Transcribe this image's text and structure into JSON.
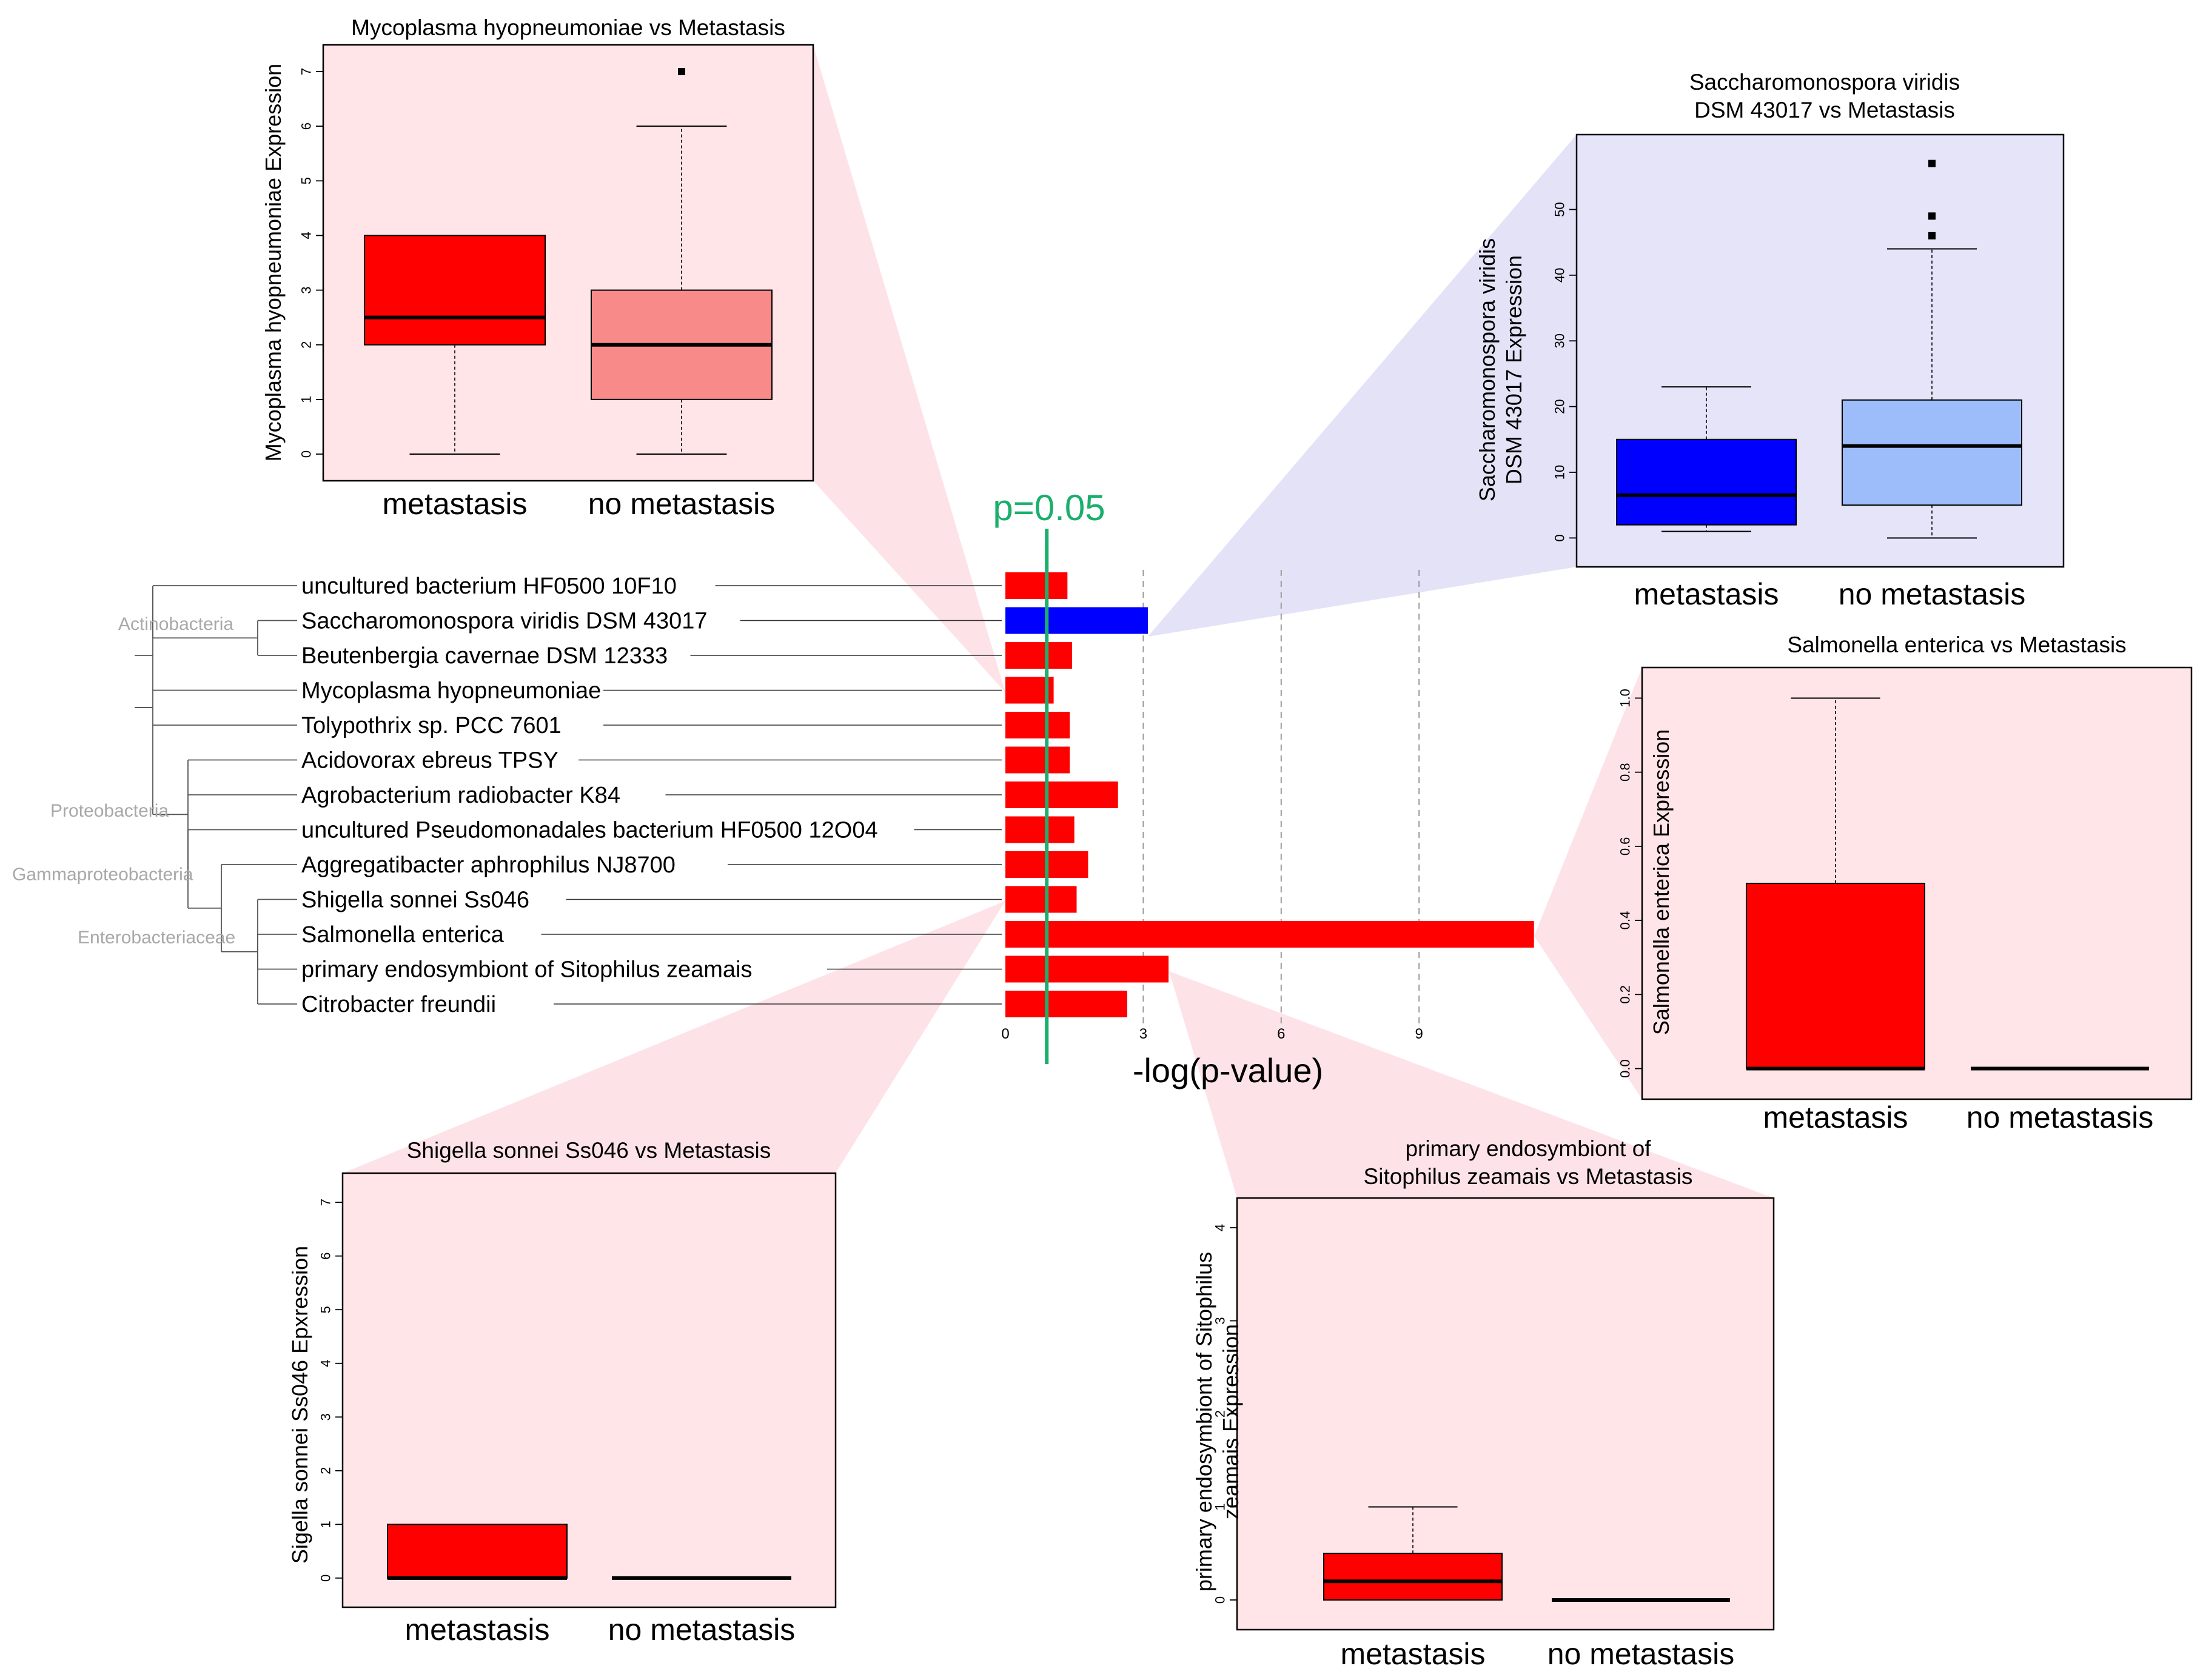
{
  "chart_data": [
    {
      "id": "main",
      "type": "bar",
      "orientation": "horizontal",
      "xlabel": "-log(p-value)",
      "xticks": [
        0,
        3,
        6,
        9
      ],
      "xlim": [
        0,
        12
      ],
      "threshold": {
        "label": "p=0.05",
        "value": 0.9,
        "color": "#1aaf6c"
      },
      "categories": [
        "uncultured bacterium HF0500 10F10",
        "Saccharomonospora viridis DSM 43017",
        "Beutenbergia cavernae DSM 12333",
        "Mycoplasma hyopneumoniae",
        "Tolypothrix sp. PCC 7601",
        "Acidovorax ebreus TPSY",
        "Agrobacterium radiobacter K84",
        "uncultured Pseudomonadales bacterium HF0500 12O04",
        "Aggregatibacter aphrophilus NJ8700",
        "Shigella sonnei Ss046",
        "Salmonella enterica",
        "primary endosymbiont of Sitophilus zeamais",
        "Citrobacter freundii"
      ],
      "values": [
        1.35,
        3.1,
        1.45,
        1.05,
        1.4,
        1.4,
        2.45,
        1.5,
        1.8,
        1.55,
        11.5,
        3.55,
        2.65
      ],
      "colors": [
        "#ff0000",
        "#0000ff",
        "#ff0000",
        "#ff0000",
        "#ff0000",
        "#ff0000",
        "#ff0000",
        "#ff0000",
        "#ff0000",
        "#ff0000",
        "#ff0000",
        "#ff0000",
        "#ff0000"
      ],
      "taxa_labels": [
        "Actinobacteria",
        "Proteobacteria",
        "Gammaproteobacteria",
        "Enterobacteriaceae"
      ]
    },
    {
      "id": "mycoplasma",
      "type": "boxplot",
      "title": [
        "Mycoplasma hyopneumoniae vs Metastasis"
      ],
      "ylabel": [
        "Mycoplasma hyopneumoniae Expression"
      ],
      "ylim": [
        -0.2,
        7.2
      ],
      "yticks": [
        0,
        1,
        2,
        3,
        4,
        5,
        6,
        7
      ],
      "panel_color": "#ffe4e8",
      "groups": [
        {
          "name": "metastasis",
          "min": 0,
          "q1": 2,
          "median": 2.5,
          "q3": 4,
          "max": 4,
          "outliers": [],
          "color": "#ff0000"
        },
        {
          "name": "no metastasis",
          "min": 0,
          "q1": 1,
          "median": 2,
          "q3": 3,
          "max": 6,
          "outliers": [
            7
          ],
          "color": "#f88a8a"
        }
      ]
    },
    {
      "id": "saccharomonospora",
      "type": "boxplot",
      "title": [
        "Saccharomonospora viridis",
        "DSM 43017 vs Metastasis"
      ],
      "ylabel": [
        "Saccharomonospora viridis",
        "DSM 43017 Expression"
      ],
      "ylim": [
        -2,
        59
      ],
      "yticks": [
        0,
        10,
        20,
        30,
        40,
        50
      ],
      "panel_color": "#e6e4f8",
      "groups": [
        {
          "name": "metastasis",
          "min": 1,
          "q1": 2,
          "median": 6.5,
          "q3": 15,
          "max": 23,
          "outliers": [],
          "color": "#0000ff"
        },
        {
          "name": "no metastasis",
          "min": 0,
          "q1": 5,
          "median": 14,
          "q3": 21,
          "max": 44,
          "outliers": [
            46,
            49,
            57
          ],
          "color": "#9cbcfa"
        }
      ]
    },
    {
      "id": "salmonella",
      "type": "boxplot",
      "title": [
        "Salmonella enterica vs Metastasis"
      ],
      "ylabel": [
        "Salmonella enterica Expression"
      ],
      "ylim": [
        -0.04,
        1.04
      ],
      "yticks": [
        0.0,
        0.2,
        0.4,
        0.6,
        0.8,
        1.0
      ],
      "tick_decimals": 1,
      "panel_color": "#ffe4e8",
      "groups": [
        {
          "name": "metastasis",
          "min": 0,
          "q1": 0,
          "median": 0,
          "q3": 0.5,
          "max": 1.0,
          "outliers": [],
          "color": "#ff0000"
        },
        {
          "name": "no metastasis",
          "min": 0,
          "q1": 0,
          "median": 0,
          "q3": 0,
          "max": 0,
          "outliers": [],
          "color": "#f88a8a"
        }
      ]
    },
    {
      "id": "shigella",
      "type": "boxplot",
      "title": [
        "Shigella sonnei Ss046 vs Metastasis"
      ],
      "ylabel": [
        "Sigella sonnei Ss046 Epxression"
      ],
      "ylim": [
        -0.25,
        7.25
      ],
      "yticks": [
        0,
        1,
        2,
        3,
        4,
        5,
        6,
        7
      ],
      "panel_color": "#ffe4e8",
      "groups": [
        {
          "name": "metastasis",
          "min": 0,
          "q1": 0,
          "median": 0,
          "q3": 1,
          "max": 1,
          "outliers": [],
          "color": "#ff0000"
        },
        {
          "name": "no metastasis",
          "min": 0,
          "q1": 0,
          "median": 0,
          "q3": 0,
          "max": 0,
          "outliers": [],
          "color": "#f88a8a"
        }
      ]
    },
    {
      "id": "endosymbiont",
      "type": "boxplot",
      "title": [
        "primary endosymbiont of",
        "Sitophilus zeamais vs Metastasis"
      ],
      "ylabel": [
        "primary endosymbiont of Sitophilus",
        "zeamais Expression"
      ],
      "ylim": [
        -0.15,
        4.15
      ],
      "yticks": [
        0,
        1,
        2,
        3,
        4
      ],
      "panel_color": "#ffe4e8",
      "groups": [
        {
          "name": "metastasis",
          "min": 0,
          "q1": 0,
          "median": 0.2,
          "q3": 0.5,
          "max": 1,
          "outliers": [],
          "color": "#ff0000"
        },
        {
          "name": "no metastasis",
          "min": 0,
          "q1": 0,
          "median": 0,
          "q3": 0,
          "max": 0,
          "outliers": [],
          "color": "#f88a8a"
        }
      ]
    }
  ]
}
